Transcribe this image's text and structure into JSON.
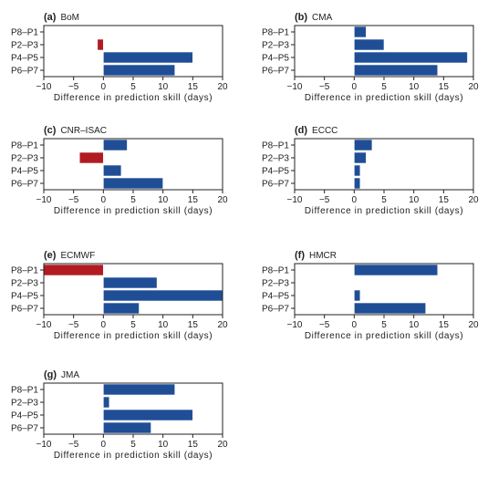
{
  "colors": {
    "positive": "#1f4e96",
    "negative": "#b01c22",
    "frame": "#222222"
  },
  "chart_data": [
    {
      "type": "bar",
      "orientation": "horizontal",
      "panel": "(a)",
      "title": "BoM",
      "categories": [
        "P8–P1",
        "P2–P3",
        "P4–P5",
        "P6–P7"
      ],
      "values": [
        0,
        -1,
        15,
        12
      ],
      "xlim": [
        -10,
        20
      ],
      "xticks": [
        "−10",
        "−5",
        "0",
        "5",
        "10",
        "15",
        "20"
      ],
      "xlabel": "Difference in prediction skill (days)"
    },
    {
      "type": "bar",
      "orientation": "horizontal",
      "panel": "(b)",
      "title": "CMA",
      "categories": [
        "P8–P1",
        "P2–P3",
        "P4–P5",
        "P6–P7"
      ],
      "values": [
        2,
        5,
        19,
        14
      ],
      "xlim": [
        -10,
        20
      ],
      "xticks": [
        "−10",
        "−5",
        "0",
        "5",
        "10",
        "15",
        "20"
      ],
      "xlabel": "Difference in prediction skill (days)"
    },
    {
      "type": "bar",
      "orientation": "horizontal",
      "panel": "(c)",
      "title": "CNR–ISAC",
      "categories": [
        "P8–P1",
        "P2–P3",
        "P4–P5",
        "P6–P7"
      ],
      "values": [
        4,
        -4,
        3,
        10
      ],
      "xlim": [
        -10,
        20
      ],
      "xticks": [
        "−10",
        "−5",
        "0",
        "5",
        "10",
        "15",
        "20"
      ],
      "xlabel": "Difference in prediction skill (days)"
    },
    {
      "type": "bar",
      "orientation": "horizontal",
      "panel": "(d)",
      "title": "ECCC",
      "categories": [
        "P8–P1",
        "P2–P3",
        "P4–P5",
        "P6–P7"
      ],
      "values": [
        3,
        2,
        1,
        1
      ],
      "xlim": [
        -10,
        20
      ],
      "xticks": [
        "−10",
        "−5",
        "0",
        "5",
        "10",
        "15",
        "20"
      ],
      "xlabel": "Difference in prediction skill (days)"
    },
    {
      "type": "bar",
      "orientation": "horizontal",
      "panel": "(e)",
      "title": "ECMWF",
      "categories": [
        "P8–P1",
        "P2–P3",
        "P4–P5",
        "P6–P7"
      ],
      "values": [
        -10,
        9,
        20,
        6
      ],
      "xlim": [
        -10,
        20
      ],
      "xticks": [
        "−10",
        "−5",
        "0",
        "5",
        "10",
        "15",
        "20"
      ],
      "xlabel": "Difference in prediction skill (days)"
    },
    {
      "type": "bar",
      "orientation": "horizontal",
      "panel": "(f)",
      "title": "HMCR",
      "categories": [
        "P8–P1",
        "P2–P3",
        "P4–P5",
        "P6–P7"
      ],
      "values": [
        14,
        0,
        1,
        12
      ],
      "xlim": [
        -10,
        20
      ],
      "xticks": [
        "−10",
        "−5",
        "0",
        "5",
        "10",
        "15",
        "20"
      ],
      "xlabel": "Difference in prediction skill (days)"
    },
    {
      "type": "bar",
      "orientation": "horizontal",
      "panel": "(g)",
      "title": "JMA",
      "categories": [
        "P8–P1",
        "P2–P3",
        "P4–P5",
        "P6–P7"
      ],
      "values": [
        12,
        1,
        15,
        8
      ],
      "xlim": [
        -10,
        20
      ],
      "xticks": [
        "−10",
        "−5",
        "0",
        "5",
        "10",
        "15",
        "20"
      ],
      "xlabel": "Difference in prediction skill (days)"
    }
  ]
}
